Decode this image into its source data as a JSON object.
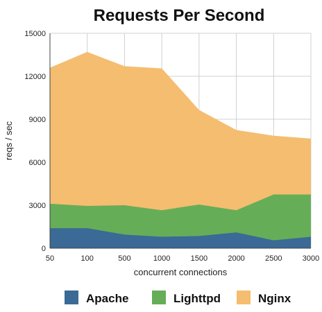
{
  "chart_data": {
    "type": "area",
    "title": "Requests Per Second",
    "xlabel": "concurrent connections",
    "ylabel": "reqs / sec",
    "categories": [
      "50",
      "100",
      "500",
      "1000",
      "1500",
      "2000",
      "2500",
      "3000"
    ],
    "ylim": [
      0,
      15000
    ],
    "yticks": [
      0,
      3000,
      6000,
      9000,
      12000,
      15000
    ],
    "ytick_labels": [
      "0",
      "3000",
      "6000",
      "9000",
      "12000",
      "15000"
    ],
    "stacked": false,
    "grid": true,
    "legend_position": "bottom",
    "series": [
      {
        "name": "Apache",
        "color": "#3a6a95",
        "values": [
          1400,
          1400,
          950,
          800,
          850,
          1100,
          550,
          800
        ]
      },
      {
        "name": "Lighttpd",
        "color": "#66ad58",
        "values": [
          3100,
          2950,
          3000,
          2650,
          3050,
          2650,
          3750,
          3750
        ]
      },
      {
        "name": "Nginx",
        "color": "#f5bd70",
        "values": [
          12600,
          13700,
          12700,
          12550,
          9650,
          8250,
          7850,
          7650
        ]
      }
    ]
  }
}
